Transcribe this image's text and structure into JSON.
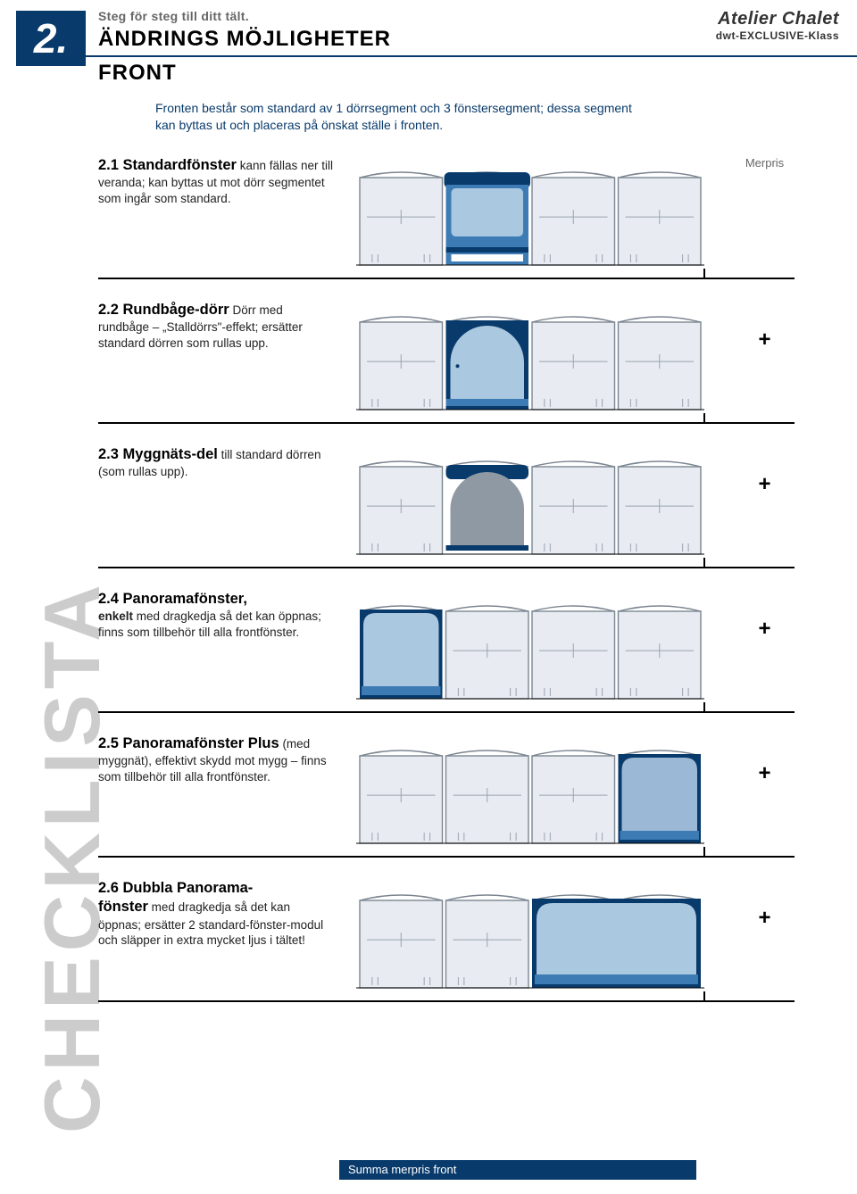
{
  "page_number": "2.",
  "header": {
    "steg": "Steg för steg till ditt tält.",
    "title_line1": "ÄNDRINGS MÖJLIGHETER",
    "title_line2": "FRONT",
    "brand_name": "Atelier Chalet",
    "brand_sub": "dwt-EXCLUSIVE-Klass"
  },
  "intro": "Fronten består som standard av 1 dörrsegment och 3 fönstersegment; dessa segment kan byttas ut och placeras på önskat ställe i fronten.",
  "sidebar": "CHECKLISTA",
  "price_label": "Merpris",
  "colors": {
    "accent": "#083a6b",
    "door_dark": "#083a6b",
    "door_mid": "#3d7bb5",
    "door_light": "#aac8e0",
    "panel_bg": "#e8ecf2",
    "frame": "#7b8590",
    "sidebar_grey": "#cccccc"
  },
  "sections": [
    {
      "id": "2-1",
      "title": "2.1 Standardfönster",
      "body": "kann fällas ner till veranda; kan byttas ut mot dörr segmentet som ingår som standard.",
      "price_mark": "",
      "diagram": {
        "type": "facade",
        "panels": 4,
        "feature_panel": 1,
        "feature": "standard_door",
        "feature_span": 1
      }
    },
    {
      "id": "2-2",
      "title": "2.2 Rundbåge-dörr",
      "body": "Dörr med rundbåge – „Stalldörrs\"-effekt; ersätter standard dörren som rullas upp.",
      "price_mark": "+",
      "diagram": {
        "type": "facade",
        "panels": 4,
        "feature_panel": 1,
        "feature": "round_door",
        "feature_span": 1
      }
    },
    {
      "id": "2-3",
      "title": "2.3 Myggnäts-del",
      "body": "till standard dörren (som rullas upp).",
      "price_mark": "+",
      "diagram": {
        "type": "facade",
        "panels": 4,
        "feature_panel": 1,
        "feature": "mesh_door",
        "feature_span": 1
      }
    },
    {
      "id": "2-4",
      "title": "2.4 Panoramafönster,",
      "lead_inline": "enkelt",
      "body": " med dragkedja så det kan öppnas; finns som tillbehör till alla frontfönster.",
      "price_mark": "+",
      "diagram": {
        "type": "facade",
        "panels": 4,
        "feature_panel": 0,
        "feature": "panorama_single",
        "feature_span": 1
      }
    },
    {
      "id": "2-5",
      "title": "2.5 Panoramafönster Plus",
      "body": "(med myggnät), effektivt skydd mot mygg – finns som tillbehör till alla frontfönster.",
      "price_mark": "+",
      "diagram": {
        "type": "facade",
        "panels": 4,
        "feature_panel": 3,
        "feature": "panorama_plus",
        "feature_span": 1
      }
    },
    {
      "id": "2-6",
      "title": "2.6 Dubbla Panorama-",
      "title2": "fönster",
      "body": " med dragkedja så det kan öppnas; ersätter 2 standard-fönster-modul och släpper in extra mycket ljus i tältet!",
      "price_mark": "+",
      "diagram": {
        "type": "facade",
        "panels": 4,
        "feature_panel": 2,
        "feature": "panorama_double",
        "feature_span": 2
      }
    }
  ],
  "footer": "Summa merpris front"
}
